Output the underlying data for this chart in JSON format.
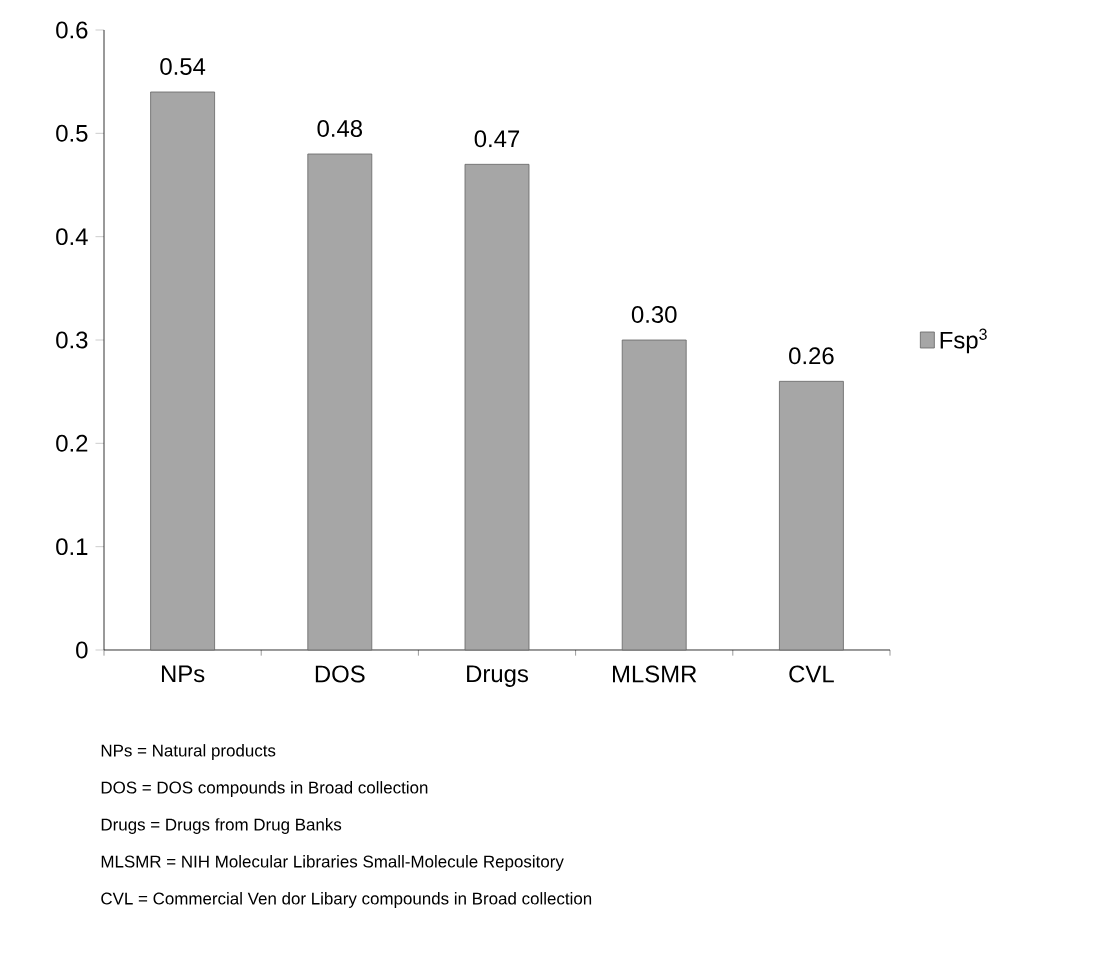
{
  "chart_data": {
    "type": "bar",
    "categories": [
      "NPs",
      "DOS",
      "Drugs",
      "MLSMR",
      "CVL"
    ],
    "series": [
      {
        "name": "Fsp$^{3}$",
        "color": "#a6a6a6",
        "values": [
          0.54,
          0.48,
          0.47,
          0.3,
          0.26
        ],
        "value_labels": [
          "0.54",
          "0.48",
          "0.47",
          "0.30",
          "0.26"
        ]
      }
    ],
    "ylim": [
      0,
      0.6
    ],
    "yticks": [
      0,
      0.1,
      0.2,
      0.3,
      0.4,
      0.5,
      0.6
    ],
    "grid": false,
    "legend": "right",
    "annotations": [
      "NPs = Natural products",
      "DOS = DOS compounds in Broad collection",
      "Drugs = Drugs from Drug Banks",
      "MLSMR = NIH Molecular Libraries Small-Molecule Repository",
      "CVL = Commercial Ven dor Libary compounds in Broad collection"
    ]
  }
}
